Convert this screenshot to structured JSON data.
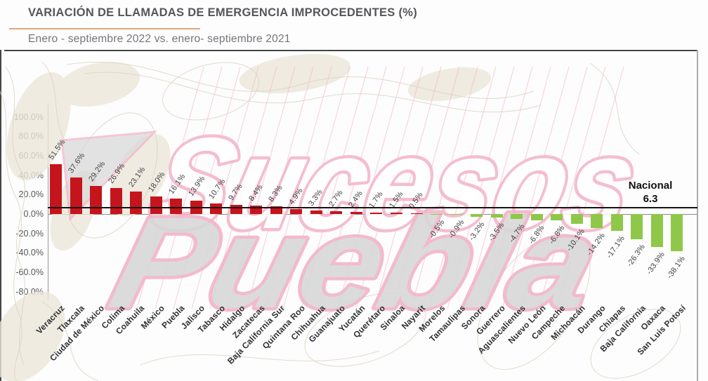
{
  "header": {
    "title": "VARIACIÓN DE LLAMADAS DE EMERGENCIA IMPROCEDENTES (%)",
    "subtitle": "Enero - septiembre 2022  vs. enero- septiembre 2021"
  },
  "national": {
    "label": "Nacional",
    "value": "6.3"
  },
  "watermark": {
    "line1": "Sucesos",
    "line2": "Puebla"
  },
  "colors": {
    "positive_bar": "#c5141b",
    "negative_bar": "#8fc748",
    "national_line": "#141414",
    "title_text": "#55565a",
    "accent_underline": "#e2a878",
    "watermark_pink": "#f2b3c8",
    "watermark_gray": "#d7d7d7"
  },
  "y_axis": {
    "ticks": [
      "100.0%",
      "80.0%",
      "60.0%",
      "40.0%",
      "20.0%",
      "0.0%",
      "-20.0%",
      "-40.0%",
      "-60.0%",
      "-80.0%"
    ]
  },
  "chart_data": {
    "type": "bar",
    "title": "VARIACIÓN DE LLAMADAS DE EMERGENCIA IMPROCEDENTES (%)",
    "subtitle": "Enero - septiembre 2022  vs. enero- septiembre 2021",
    "categories": [
      "Veracruz",
      "Tlaxcala",
      "Ciudad de México",
      "Colima",
      "Coahuila",
      "México",
      "Puebla",
      "Jalisco",
      "Tabasco",
      "Hidalgo",
      "Zacatecas",
      "Baja California Sur",
      "Quintana Roo",
      "Chihuahua",
      "Guanajuato",
      "Yucatán",
      "Querétaro",
      "Sinaloa",
      "Nayarit",
      "Morelos",
      "Tamaulipas",
      "Sonora",
      "Guerrero",
      "Aguascalientes",
      "Nuevo León",
      "Campeche",
      "Michoacán",
      "Durango",
      "Chiapas",
      "Baja California",
      "Oaxaca",
      "San Luis Potosí"
    ],
    "values": [
      51.5,
      37.6,
      29.2,
      26.9,
      23.1,
      18.0,
      16.1,
      13.9,
      10.7,
      9.7,
      8.4,
      8.3,
      4.9,
      3.3,
      2.7,
      2.4,
      1.7,
      1.5,
      0.5,
      -0.5,
      -0.9,
      -3.2,
      -3.5,
      -4.7,
      -6.8,
      -6.8,
      -10.1,
      -14.2,
      -17.1,
      -26.3,
      -33.9,
      -38.1
    ],
    "labels": [
      "51.5%",
      "37.6%",
      "29.2%",
      "26.9%",
      "23.1%",
      "18.0%",
      "16.1%",
      "13.9%",
      "10.7%",
      "9.7%",
      "8.4%",
      "8.3%",
      "4.9%",
      "3.3%",
      "2.7%",
      "2.4%",
      "1.7%",
      "1.5%",
      "0.5%",
      "-0.5%",
      "-0.9%",
      "-3.2%",
      "-3.5%",
      "-4.7%",
      "-6.8%",
      "-6.8%",
      "-10.1%",
      "-14.2%",
      "-17.1%",
      "-26.3%",
      "-33.9%",
      "-38.1%"
    ],
    "xlabel": "",
    "ylabel": "",
    "ylim": [
      -80,
      100
    ],
    "grid": false,
    "legend": null,
    "national_reference": 6.3,
    "positive_color_meaning": "increase (red)",
    "negative_color_meaning": "decrease (green)"
  }
}
